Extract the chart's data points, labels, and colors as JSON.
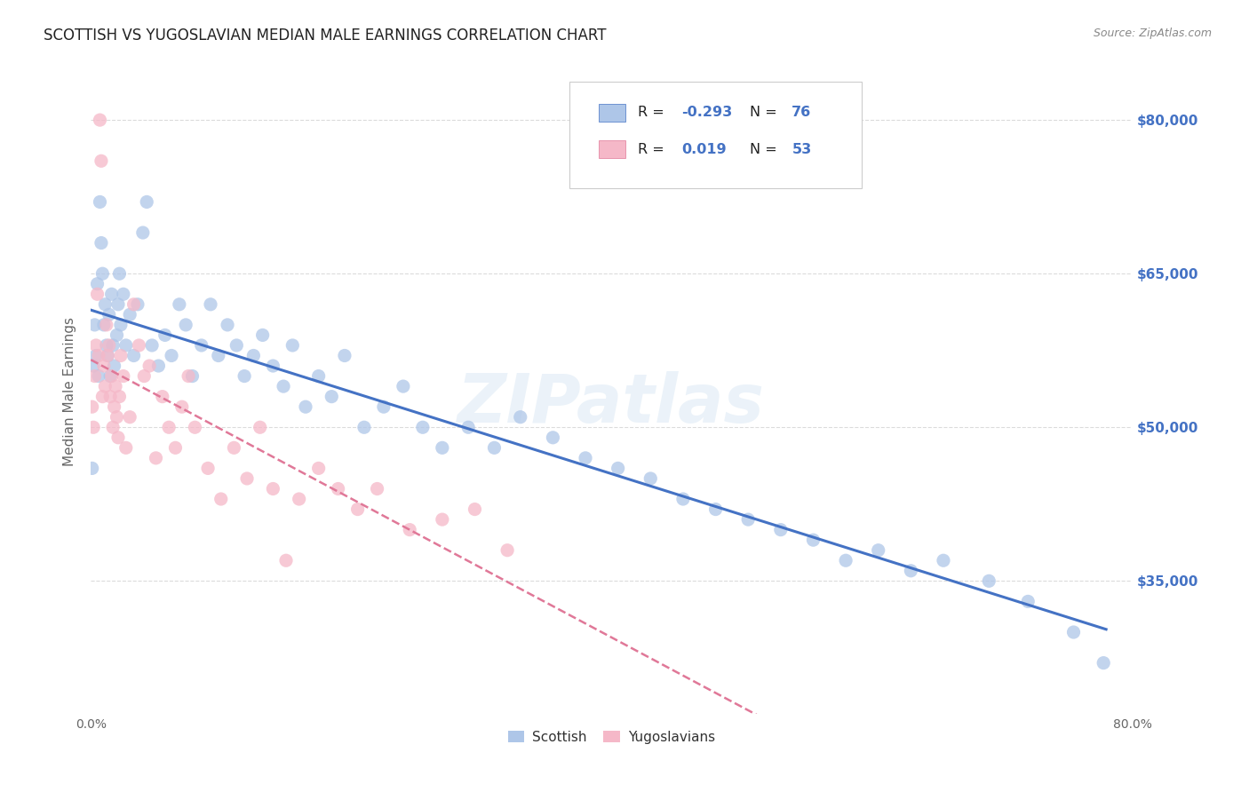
{
  "title": "SCOTTISH VS YUGOSLAVIAN MEDIAN MALE EARNINGS CORRELATION CHART",
  "source": "Source: ZipAtlas.com",
  "ylabel": "Median Male Earnings",
  "yticks": [
    35000,
    50000,
    65000,
    80000
  ],
  "ytick_labels": [
    "$35,000",
    "$50,000",
    "$65,000",
    "$80,000"
  ],
  "xlim": [
    0.0,
    0.8
  ],
  "ylim": [
    22000,
    85000
  ],
  "scottish_R": "-0.293",
  "scottish_N": "76",
  "yugoslavian_R": "0.019",
  "yugoslavian_N": "53",
  "scottish_color": "#aec6e8",
  "yugoslavian_color": "#f5b8c8",
  "scottish_line_color": "#4472c4",
  "yugoslavian_line_color": "#e07898",
  "background_color": "#ffffff",
  "grid_color": "#d8d8d8",
  "title_color": "#333333",
  "axis_label_color": "#666666",
  "value_color": "#4472c4",
  "watermark": "ZIPatlas",
  "scottish_x": [
    0.001,
    0.002,
    0.003,
    0.004,
    0.005,
    0.006,
    0.007,
    0.008,
    0.009,
    0.01,
    0.011,
    0.012,
    0.013,
    0.014,
    0.015,
    0.016,
    0.017,
    0.018,
    0.02,
    0.021,
    0.022,
    0.023,
    0.025,
    0.027,
    0.03,
    0.033,
    0.036,
    0.04,
    0.043,
    0.047,
    0.052,
    0.057,
    0.062,
    0.068,
    0.073,
    0.078,
    0.085,
    0.092,
    0.098,
    0.105,
    0.112,
    0.118,
    0.125,
    0.132,
    0.14,
    0.148,
    0.155,
    0.165,
    0.175,
    0.185,
    0.195,
    0.21,
    0.225,
    0.24,
    0.255,
    0.27,
    0.29,
    0.31,
    0.33,
    0.355,
    0.38,
    0.405,
    0.43,
    0.455,
    0.48,
    0.505,
    0.53,
    0.555,
    0.58,
    0.605,
    0.63,
    0.655,
    0.69,
    0.72,
    0.755,
    0.778
  ],
  "scottish_y": [
    46000,
    56000,
    60000,
    57000,
    64000,
    55000,
    72000,
    68000,
    65000,
    60000,
    62000,
    58000,
    57000,
    61000,
    55000,
    63000,
    58000,
    56000,
    59000,
    62000,
    65000,
    60000,
    63000,
    58000,
    61000,
    57000,
    62000,
    69000,
    72000,
    58000,
    56000,
    59000,
    57000,
    62000,
    60000,
    55000,
    58000,
    62000,
    57000,
    60000,
    58000,
    55000,
    57000,
    59000,
    56000,
    54000,
    58000,
    52000,
    55000,
    53000,
    57000,
    50000,
    52000,
    54000,
    50000,
    48000,
    50000,
    48000,
    51000,
    49000,
    47000,
    46000,
    45000,
    43000,
    42000,
    41000,
    40000,
    39000,
    37000,
    38000,
    36000,
    37000,
    35000,
    33000,
    30000,
    27000
  ],
  "yugoslavian_x": [
    0.001,
    0.002,
    0.003,
    0.004,
    0.005,
    0.006,
    0.007,
    0.008,
    0.009,
    0.01,
    0.011,
    0.012,
    0.013,
    0.014,
    0.015,
    0.016,
    0.017,
    0.018,
    0.019,
    0.02,
    0.021,
    0.022,
    0.023,
    0.025,
    0.027,
    0.03,
    0.033,
    0.037,
    0.041,
    0.045,
    0.05,
    0.055,
    0.06,
    0.065,
    0.07,
    0.075,
    0.08,
    0.09,
    0.1,
    0.11,
    0.12,
    0.13,
    0.14,
    0.15,
    0.16,
    0.175,
    0.19,
    0.205,
    0.22,
    0.245,
    0.27,
    0.295,
    0.32
  ],
  "yugoslavian_y": [
    52000,
    50000,
    55000,
    58000,
    63000,
    57000,
    80000,
    76000,
    53000,
    56000,
    54000,
    60000,
    57000,
    58000,
    53000,
    55000,
    50000,
    52000,
    54000,
    51000,
    49000,
    53000,
    57000,
    55000,
    48000,
    51000,
    62000,
    58000,
    55000,
    56000,
    47000,
    53000,
    50000,
    48000,
    52000,
    55000,
    50000,
    46000,
    43000,
    48000,
    45000,
    50000,
    44000,
    37000,
    43000,
    46000,
    44000,
    42000,
    44000,
    40000,
    41000,
    42000,
    38000
  ]
}
